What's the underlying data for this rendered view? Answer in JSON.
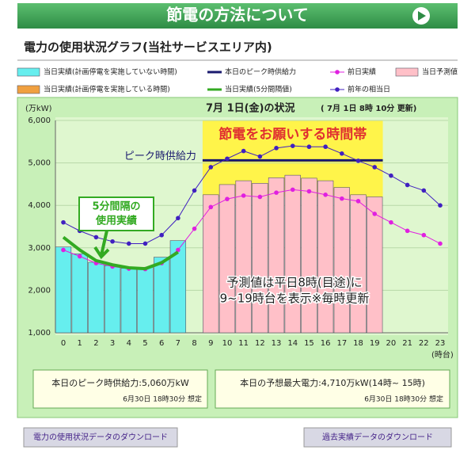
{
  "header": {
    "title": "節電の方法について"
  },
  "subtitle": "電力の使用状況グラフ(当社サービスエリア内)",
  "chart_data": {
    "type": "bar",
    "title": "7月 1日(金)の状況",
    "updated": "( 7月 1日 8時 10分 更新)",
    "y_label": "(万kW)",
    "x_label": "(時台)",
    "categories": [
      "0",
      "1",
      "2",
      "3",
      "4",
      "5",
      "6",
      "7",
      "8",
      "9",
      "10",
      "11",
      "12",
      "13",
      "14",
      "15",
      "16",
      "17",
      "18",
      "19",
      "20",
      "21",
      "22",
      "23"
    ],
    "ylim": [
      1000,
      6000
    ],
    "yticks": [
      {
        "value": 1000,
        "label": "1,000"
      },
      {
        "value": 2000,
        "label": "2,000"
      },
      {
        "value": 3000,
        "label": "3,000"
      },
      {
        "value": 4000,
        "label": "4,000"
      },
      {
        "value": 5000,
        "label": "5,000"
      },
      {
        "value": 6000,
        "label": "6,000"
      }
    ],
    "grid": true,
    "series": [
      {
        "name": "当日実績(計画停電を実施していない時間)",
        "kind": "bar",
        "color": "#66eeee",
        "values": [
          3020,
          2860,
          2660,
          2580,
          2520,
          2540,
          2780,
          3170,
          null,
          null,
          null,
          null,
          null,
          null,
          null,
          null,
          null,
          null,
          null,
          null,
          null,
          null,
          null,
          null
        ]
      },
      {
        "name": "本日のピーク時供給力",
        "kind": "hline",
        "color": "#1a1a6e",
        "value": 5060
      },
      {
        "name": "前日実績",
        "kind": "dotline",
        "color": "#e020e0",
        "values": [
          2950,
          2800,
          2640,
          2560,
          2510,
          2500,
          2640,
          2950,
          3450,
          3960,
          4150,
          4230,
          4200,
          4300,
          4370,
          4330,
          4250,
          4160,
          4100,
          3800,
          3600,
          3400,
          3300,
          3100
        ]
      },
      {
        "name": "当日予測値",
        "kind": "bar",
        "color": "#ffc0c8",
        "values": [
          null,
          null,
          null,
          null,
          null,
          null,
          null,
          null,
          null,
          4250,
          4490,
          4580,
          4520,
          4650,
          4710,
          4640,
          4580,
          4420,
          4250,
          4200,
          null,
          null,
          null,
          null
        ]
      },
      {
        "name": "当日実績(計画停電を実施している時間)",
        "kind": "bar",
        "color": "#f0a040",
        "values": [
          null,
          null,
          null,
          null,
          null,
          null,
          null,
          null,
          null,
          null,
          null,
          null,
          null,
          null,
          null,
          null,
          null,
          null,
          null,
          null,
          null,
          null,
          null,
          null
        ]
      },
      {
        "name": "当日実績(5分間隔値)",
        "kind": "line",
        "color": "#33aa22",
        "values": [
          3250,
          2950,
          2700,
          2600,
          2530,
          2510,
          2650,
          2900,
          null,
          null,
          null,
          null,
          null,
          null,
          null,
          null,
          null,
          null,
          null,
          null,
          null,
          null,
          null,
          null
        ]
      },
      {
        "name": "前年の相当日",
        "kind": "dotline",
        "color": "#4020c0",
        "values": [
          3600,
          3400,
          3250,
          3150,
          3100,
          3100,
          3300,
          3700,
          4350,
          4900,
          5100,
          5280,
          5150,
          5350,
          5400,
          5380,
          5380,
          5220,
          5050,
          4900,
          4700,
          4480,
          4350,
          4000
        ]
      }
    ],
    "annotations": {
      "band": "節電をお願いする時間帯",
      "peak": "ピーク時供給力",
      "five_min": [
        "5分間隔の",
        "使用実績"
      ],
      "forecast": [
        "予測値は平日8時(目途)に",
        "9~19時台を表示※毎時更新"
      ]
    }
  },
  "info": [
    {
      "main": "本日のピーク時供給力:5,060万kW",
      "note": "6月30日 18時30分 想定"
    },
    {
      "main": "本日の予想最大電力:4,710万kW(14時~ 15時)",
      "note": "6月30日 18時30分 想定"
    }
  ],
  "buttons": [
    "電力の使用状況データのダウンロード",
    "過去実績データのダウンロード"
  ]
}
